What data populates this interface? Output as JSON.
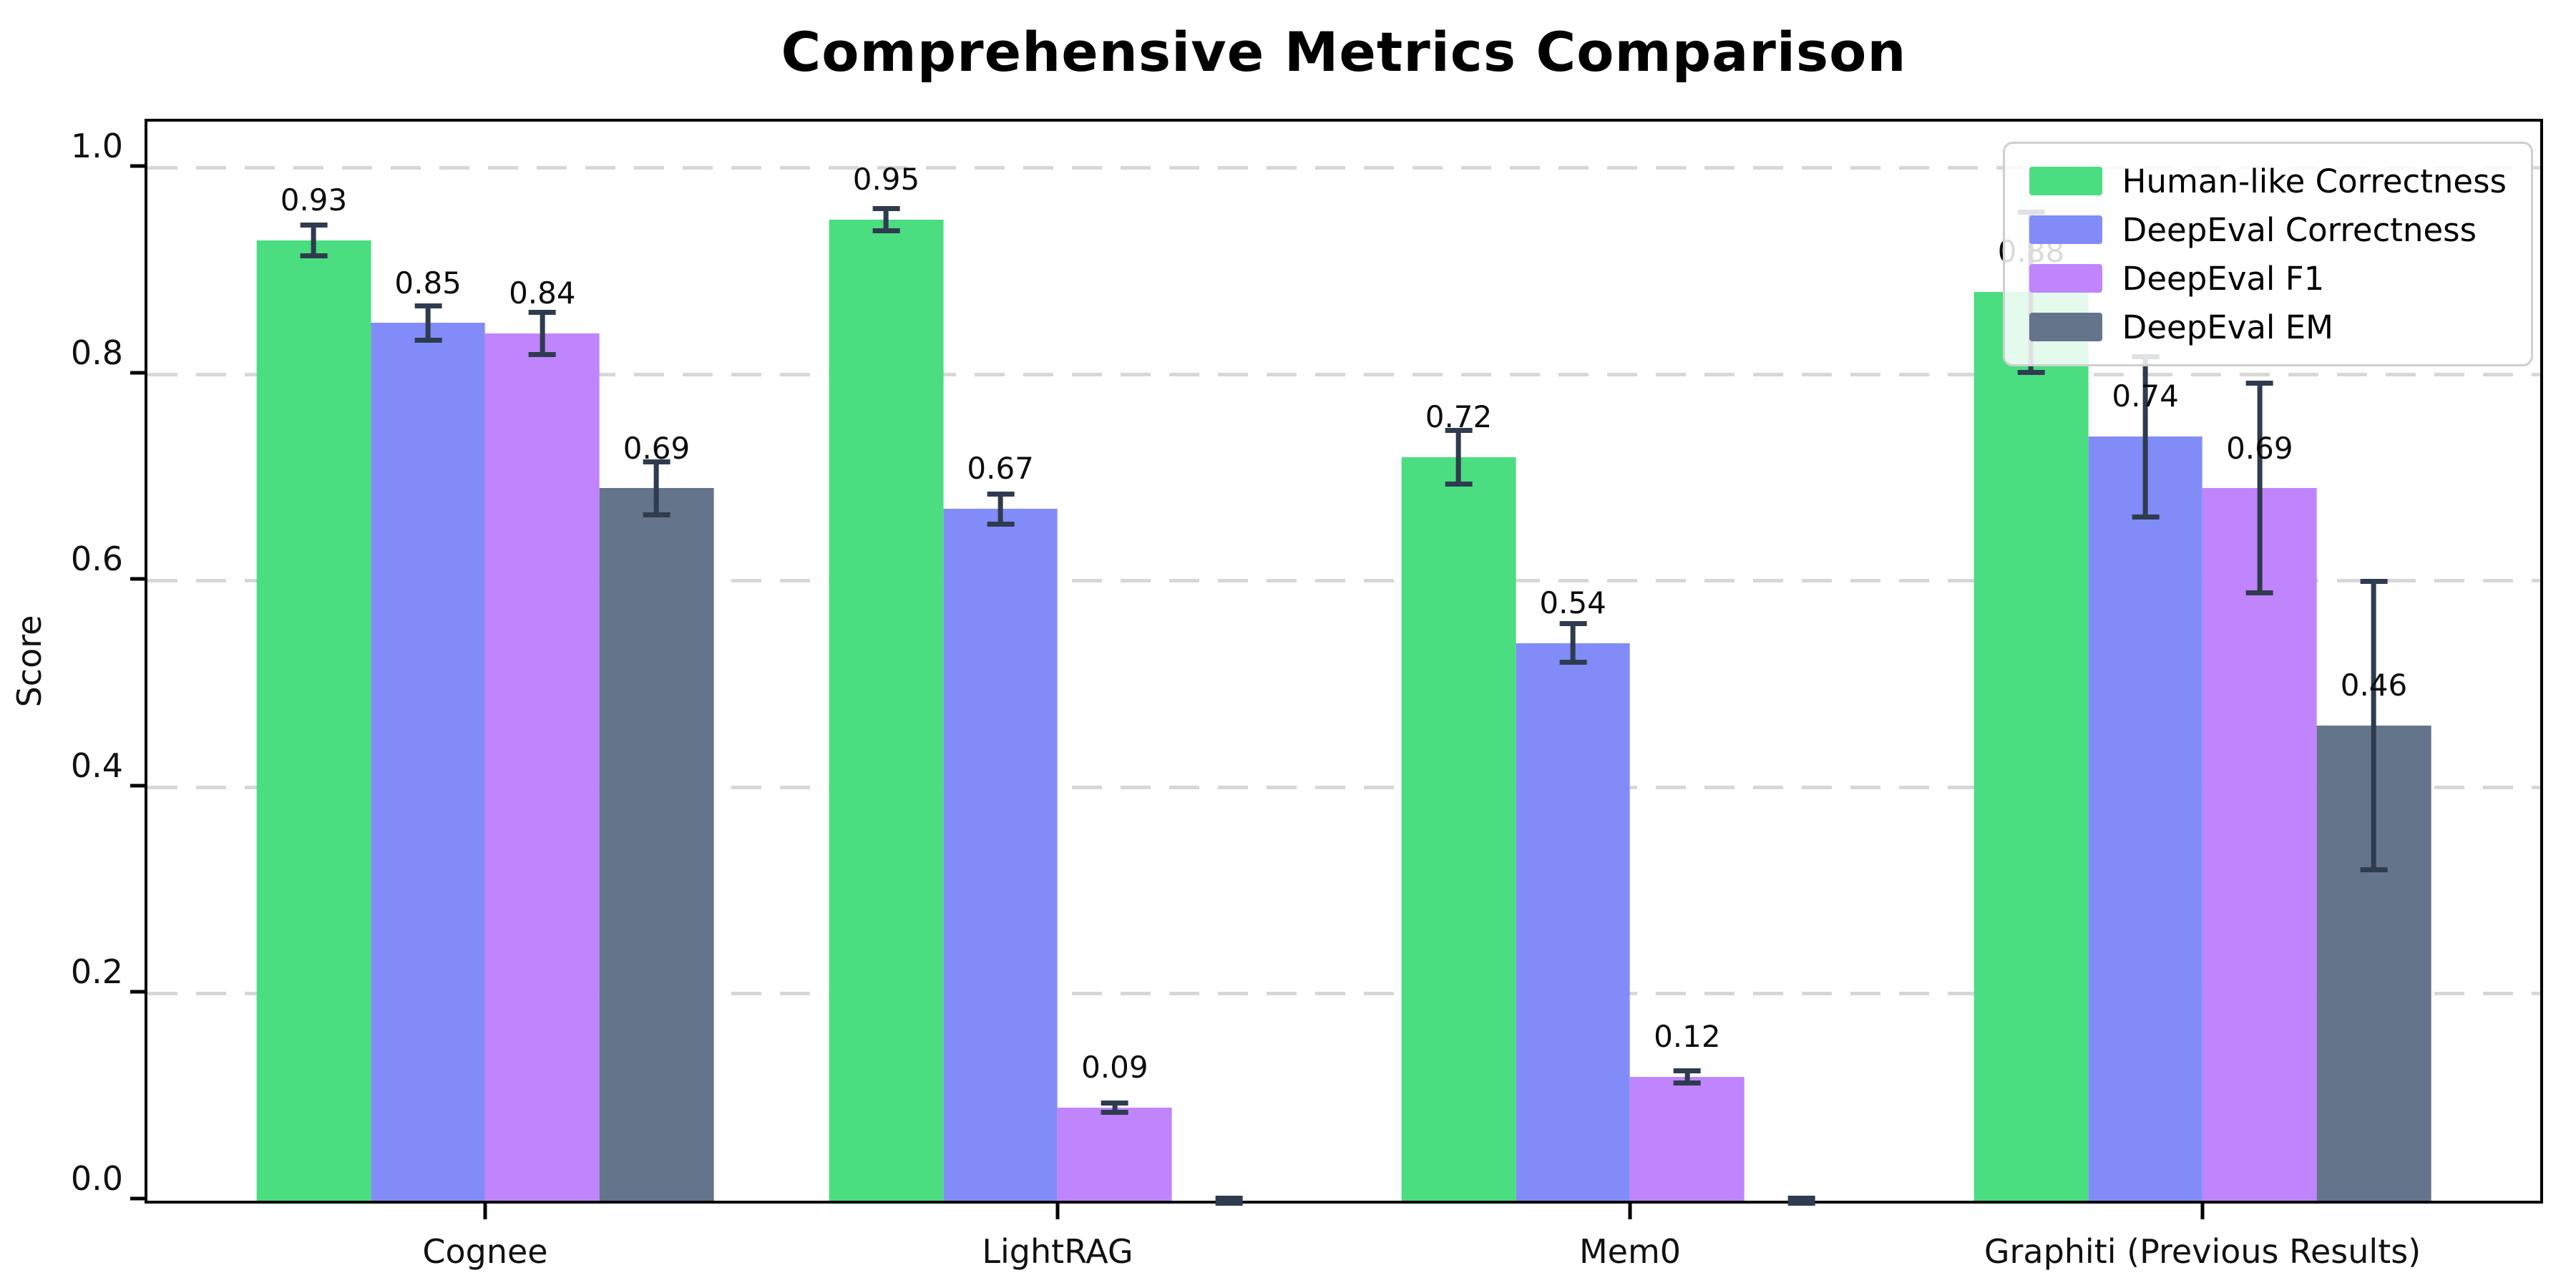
{
  "chart_data": {
    "type": "bar",
    "title": "Comprehensive Metrics Comparison",
    "xlabel": "",
    "ylabel": "Score",
    "categories": [
      "Cognee",
      "LightRAG",
      "Mem0",
      "Graphiti (Previous Results)"
    ],
    "ylim": [
      0,
      1.045
    ],
    "ytick_values": [
      0.0,
      0.2,
      0.4,
      0.6,
      0.8,
      1.0
    ],
    "ytick_labels": [
      "0.0",
      "0.2",
      "0.4",
      "0.6",
      "0.8",
      "1.0"
    ],
    "grid": "horizontal-dashed",
    "legend_position": "upper-right",
    "error_bar_color": "#2f3b4e",
    "gridline_color": "#d7d7d7",
    "series": [
      {
        "name": "Human-like Correctness",
        "color": "#4ade80",
        "values": [
          0.93,
          0.95,
          0.72,
          0.88
        ],
        "errors": [
          0.015,
          0.011,
          0.026,
          0.078
        ],
        "labels": [
          "0.93",
          "0.95",
          "0.72",
          "0.88"
        ]
      },
      {
        "name": "DeepEval Correctness",
        "color": "#818cf8",
        "values": [
          0.85,
          0.67,
          0.54,
          0.74
        ],
        "errors": [
          0.017,
          0.015,
          0.019,
          0.078
        ],
        "labels": [
          "0.85",
          "0.67",
          "0.54",
          "0.74"
        ]
      },
      {
        "name": "DeepEval F1",
        "color": "#c084fc",
        "values": [
          0.84,
          0.09,
          0.12,
          0.69
        ],
        "errors": [
          0.021,
          0.005,
          0.006,
          0.102
        ],
        "labels": [
          "0.84",
          "0.09",
          "0.12",
          "0.69"
        ]
      },
      {
        "name": "DeepEval EM",
        "color": "#64748b",
        "values": [
          0.69,
          0.0,
          0.0,
          0.46
        ],
        "errors": [
          0.026,
          0.003,
          0.003,
          0.14
        ],
        "labels": [
          "0.69",
          null,
          null,
          "0.46"
        ]
      }
    ]
  }
}
